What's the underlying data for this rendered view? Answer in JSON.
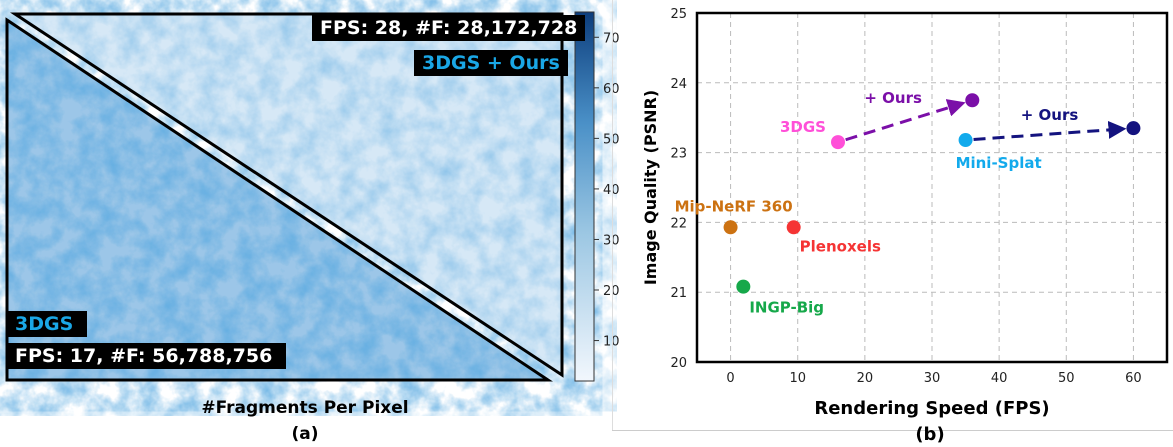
{
  "panel_a": {
    "top_stats": "FPS: 28, #F: 28,172,728",
    "top_method": "3DGS + Ours",
    "bottom_method": "3DGS",
    "bottom_stats": "FPS: 17, #F: 56,788,756",
    "caption": "#Fragments Per Pixel",
    "panel_label": "(a)",
    "colorbar": {
      "ticks": [
        10,
        20,
        30,
        40,
        50,
        60,
        70
      ],
      "range": [
        2,
        75
      ],
      "colormap": "Blues"
    },
    "method_color": "#1aa7e6"
  },
  "chart_data": {
    "type": "scatter",
    "xlabel": "Rendering Speed (FPS)",
    "ylabel": "Image Quality (PSNR)",
    "xlim": [
      -5,
      65
    ],
    "ylim": [
      20,
      25
    ],
    "xticks": [
      0,
      10,
      20,
      30,
      40,
      50,
      60
    ],
    "yticks": [
      20,
      21,
      22,
      23,
      24,
      25
    ],
    "grid": true,
    "points": [
      {
        "label": "3DGS",
        "x": 16,
        "y": 23.15,
        "color": "#ff4fd8"
      },
      {
        "label": "",
        "x": 36,
        "y": 23.75,
        "color": "#7b0fa8"
      },
      {
        "label": "Mini-Splat",
        "x": 35,
        "y": 23.18,
        "color": "#12aaec"
      },
      {
        "label": "",
        "x": 60,
        "y": 23.35,
        "color": "#14137f"
      },
      {
        "label": "Mip-NeRF 360",
        "x": 0,
        "y": 21.93,
        "color": "#cc7212"
      },
      {
        "label": "Plenoxels",
        "x": 9.4,
        "y": 21.93,
        "color": "#f53434"
      },
      {
        "label": "INGP-Big",
        "x": 1.9,
        "y": 21.08,
        "color": "#16a84a"
      }
    ],
    "arrows": [
      {
        "from": [
          16,
          23.15
        ],
        "to": [
          36,
          23.75
        ],
        "label": "+ Ours",
        "color": "#7b0fa8"
      },
      {
        "from": [
          35,
          23.18
        ],
        "to": [
          60,
          23.35
        ],
        "label": "+ Ours",
        "color": "#14137f"
      }
    ]
  },
  "panel_b": {
    "panel_label": "(b)"
  }
}
